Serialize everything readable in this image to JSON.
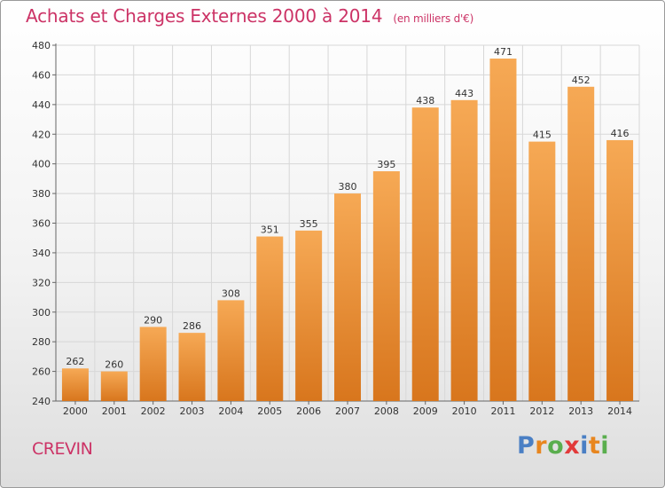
{
  "title": "Achats et Charges Externes 2000 à 2014",
  "subtitle": "(en milliers d'€)",
  "town": "CREVIN",
  "logo": {
    "letters": [
      "P",
      "r",
      "o",
      "x",
      "i",
      "t",
      "i"
    ],
    "colors": [
      "#4a7fc4",
      "#e8861f",
      "#5aae4e",
      "#e23a3a",
      "#4a7fc4",
      "#e8861f",
      "#5aae4e"
    ]
  },
  "colors": {
    "title": "#cc3366",
    "bar_top": "#f6a955",
    "bar_bottom": "#d8761d",
    "grid": "#d7d7d7"
  },
  "chart_data": {
    "type": "bar",
    "categories": [
      "2000",
      "2001",
      "2002",
      "2003",
      "2004",
      "2005",
      "2006",
      "2007",
      "2008",
      "2009",
      "2010",
      "2011",
      "2012",
      "2013",
      "2014"
    ],
    "values": [
      262,
      260,
      290,
      286,
      308,
      351,
      355,
      380,
      395,
      438,
      443,
      471,
      415,
      452,
      416
    ],
    "yticks": [
      240,
      260,
      280,
      300,
      320,
      340,
      360,
      380,
      400,
      420,
      440,
      460,
      480
    ],
    "ylim": [
      240,
      480
    ],
    "grid": true,
    "title": "Achats et Charges Externes 2000 à 2014",
    "xlabel": "",
    "ylabel": ""
  }
}
